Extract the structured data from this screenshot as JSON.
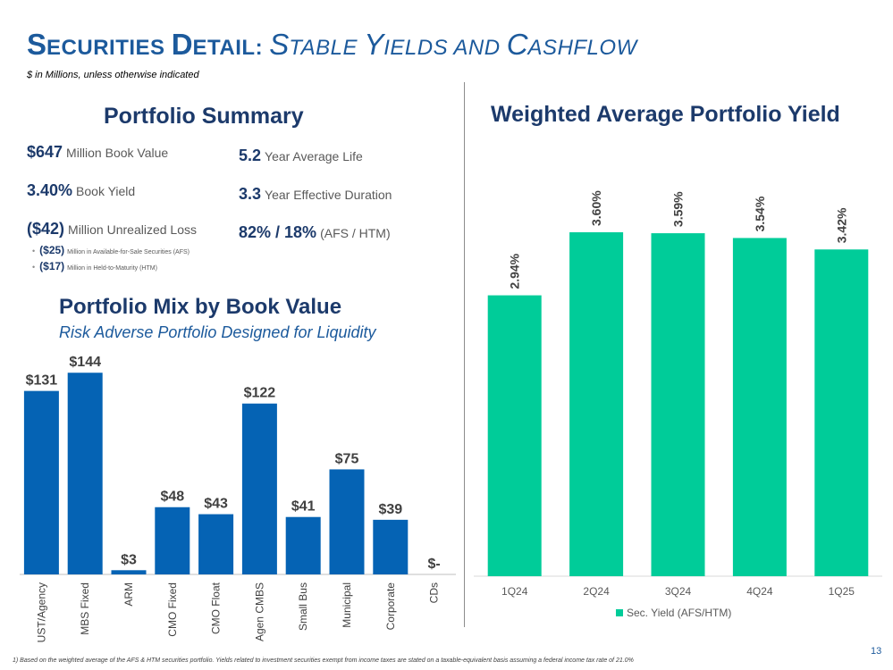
{
  "header": {
    "title_s": "S",
    "title_rest1": "ECURITIES ",
    "title_d": "D",
    "title_rest2": "ETAIL: ",
    "title_s2": "S",
    "title_rest3": "TABLE ",
    "title_y": "Y",
    "title_rest4": "IELDS AND ",
    "title_c": "C",
    "title_rest5": "ASHFLOW",
    "subtitle": "$ in Millions, unless otherwise indicated"
  },
  "summary": {
    "heading": "Portfolio Summary",
    "book_value_num": "$647",
    "book_value_label": "Million Book Value",
    "book_yield_num": "3.40%",
    "book_yield_label": "Book Yield",
    "unrealized_num": "($42)",
    "unrealized_label": "Million Unrealized Loss",
    "bullets": [
      {
        "num": "($25)",
        "label": "Million in Available-for-Sale Securities (AFS)"
      },
      {
        "num": "($17)",
        "label": "Million in Held-to-Maturity (HTM)"
      }
    ],
    "avg_life_num": "5.2",
    "avg_life_label": "Year Average Life",
    "duration_num": "3.3",
    "duration_label": "Year Effective Duration",
    "afs_htm_num": "82% / 18%",
    "afs_htm_label": "(AFS / HTM)"
  },
  "mix": {
    "heading": "Portfolio Mix by Book Value",
    "subheading": "Risk Adverse Portfolio Designed for Liquidity"
  },
  "chart_data": [
    {
      "type": "bar",
      "title": "Portfolio Mix by Book Value",
      "categories": [
        "UST/Agency",
        "MBS Fixed",
        "ARM",
        "CMO Fixed",
        "CMO Float",
        "Agen CMBS",
        "Small Bus",
        "Municipal",
        "Corporate",
        "CDs"
      ],
      "values": [
        131,
        144,
        3,
        48,
        43,
        122,
        41,
        75,
        39,
        0
      ],
      "labels": [
        "$131",
        "$144",
        "$3",
        "$48",
        "$43",
        "$122",
        "$41",
        "$75",
        "$39",
        "$-"
      ],
      "ylim": [
        0,
        155
      ],
      "color": "#0563b4",
      "grid": false
    },
    {
      "type": "bar",
      "title": "Weighted Average Portfolio Yield",
      "categories": [
        "1Q24",
        "2Q24",
        "3Q24",
        "4Q24",
        "1Q25"
      ],
      "values": [
        2.94,
        3.6,
        3.59,
        3.54,
        3.42
      ],
      "labels": [
        "2.94%",
        "3.60%",
        "3.59%",
        "3.54%",
        "3.42%"
      ],
      "ylim": [
        0,
        4.5
      ],
      "legend": "Sec. Yield (AFS/HTM)",
      "legend_position": "bottom",
      "color": "#00cc99",
      "grid": false
    }
  ],
  "footer": {
    "footnote": "1)  Based on the weighted average of the AFS & HTM securities portfolio. Yields related to investment securities exempt from income taxes are stated on a taxable-equivalent basis assuming a federal income tax rate of 21.0%",
    "page_number": "13"
  }
}
